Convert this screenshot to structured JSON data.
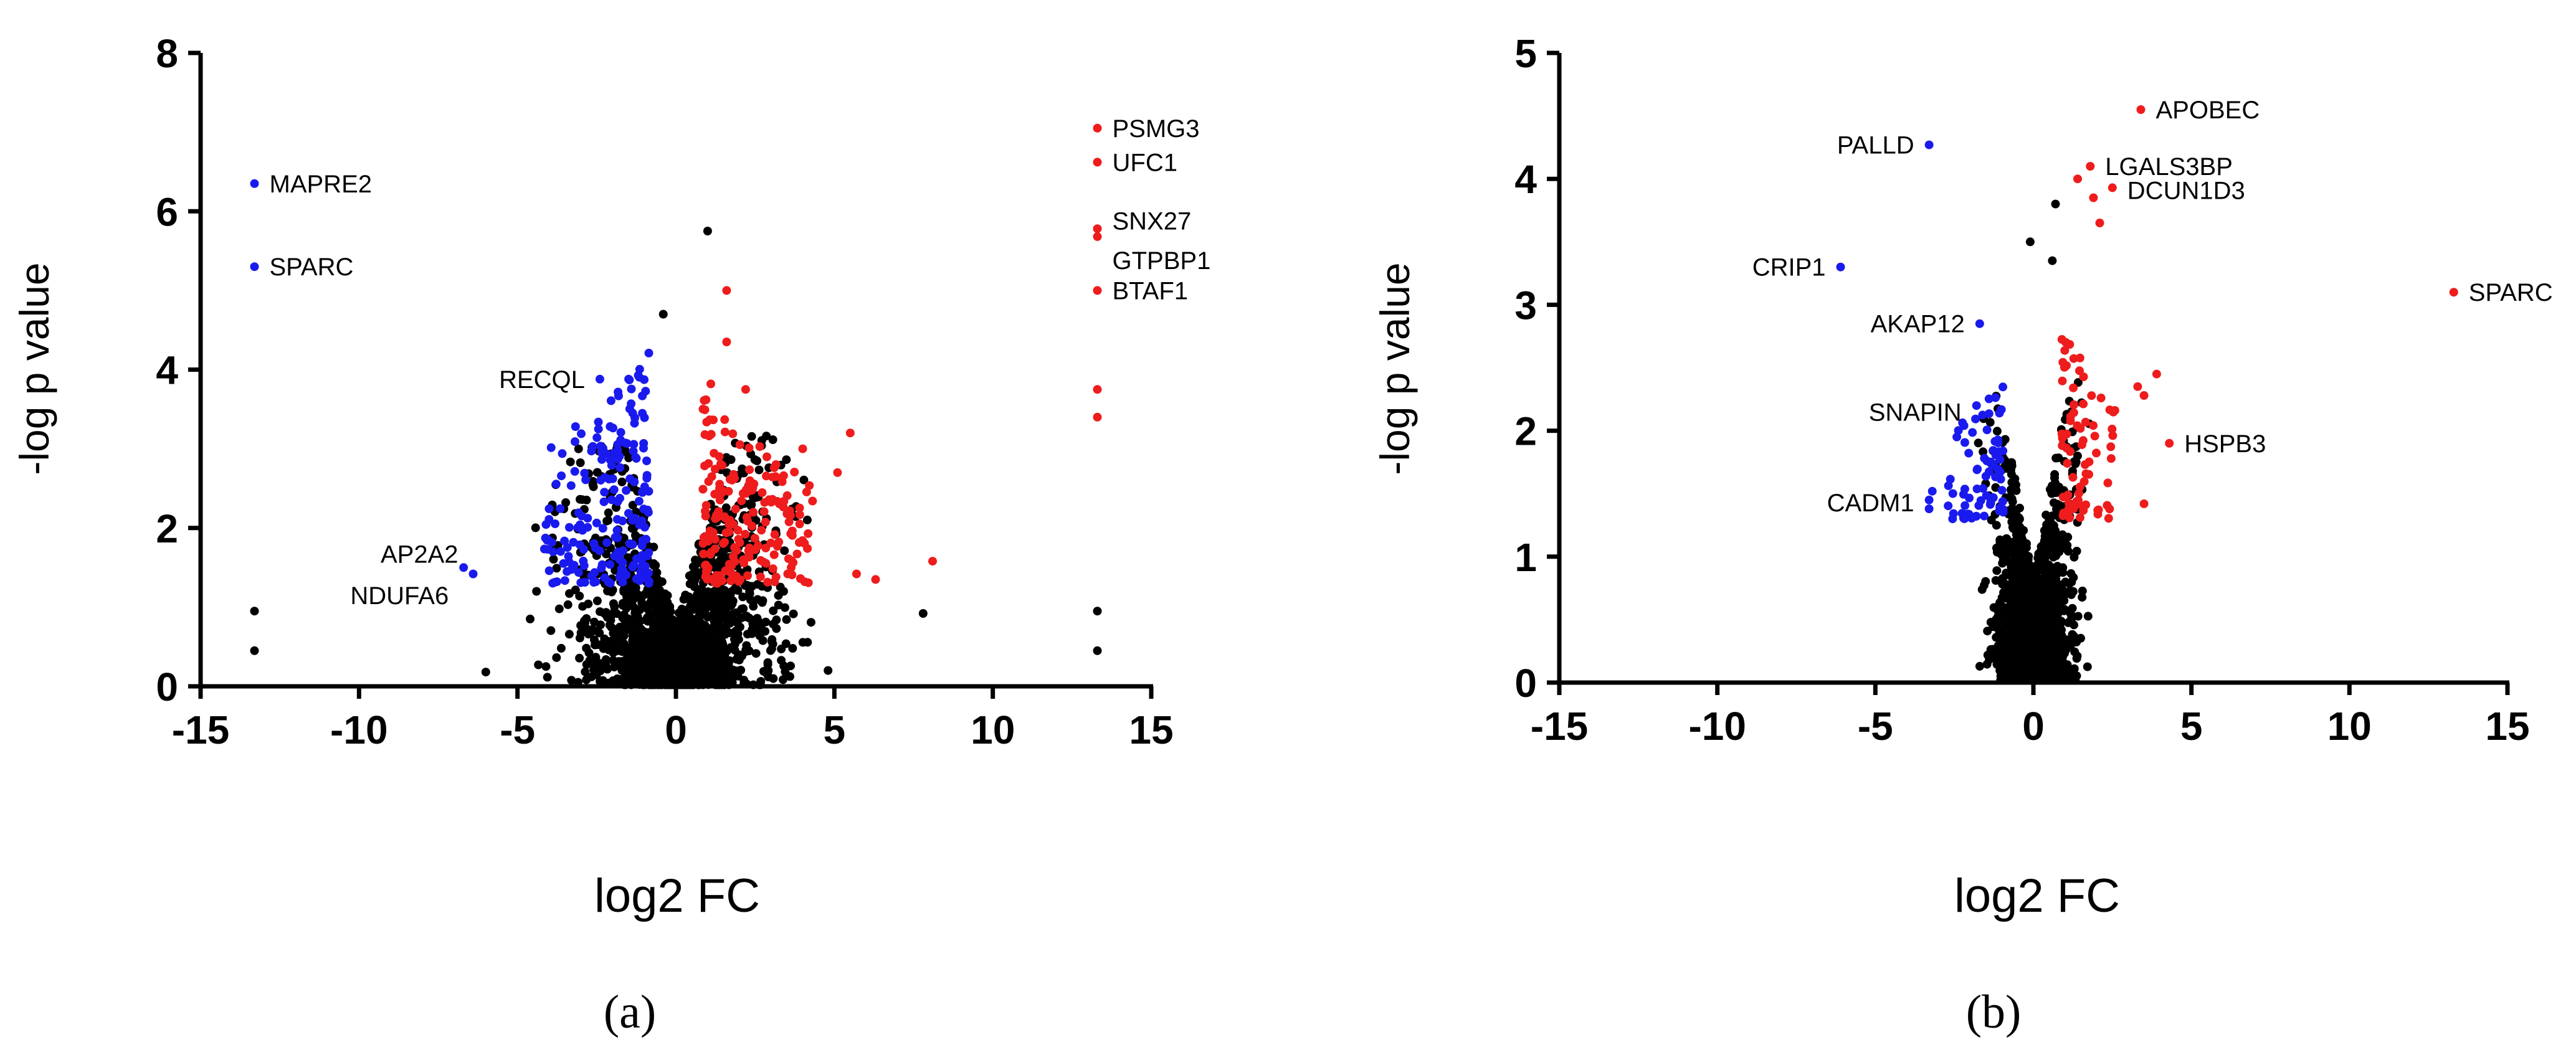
{
  "colors": {
    "up": "#ee1c1c",
    "down": "#1a1aee",
    "ns": "#000000",
    "axis": "#000000"
  },
  "chart_data": [
    {
      "type": "scatter",
      "panel_label": "(a)",
      "xlabel": "log2 FC",
      "ylabel": "-log p value",
      "xlim": [
        -15,
        15
      ],
      "ylim": [
        0,
        8
      ],
      "xticks": [
        -15,
        -10,
        -5,
        0,
        5,
        10,
        15
      ],
      "yticks": [
        0,
        2,
        4,
        6,
        8
      ],
      "xtick_labels": [
        "-15",
        "-10",
        "-5",
        "0",
        "5",
        "10",
        "15"
      ],
      "ytick_labels": [
        "0",
        "2",
        "4",
        "6",
        "8"
      ],
      "annotations": [
        {
          "label": "MAPRE2",
          "x": -13.3,
          "y": 6.35,
          "group": "down",
          "side": "right"
        },
        {
          "label": "SPARC",
          "x": -13.3,
          "y": 5.3,
          "group": "down",
          "side": "right"
        },
        {
          "label": "RECQL",
          "x": -2.4,
          "y": 3.88,
          "group": "down",
          "side": "left"
        },
        {
          "label": "NDUFA6",
          "x": -6.7,
          "y": 1.5,
          "group": "down",
          "side": "left",
          "dy": -0.35
        },
        {
          "label": "AP2A2",
          "x": -6.4,
          "y": 1.42,
          "group": "down",
          "side": "left",
          "dy": 0.25
        },
        {
          "label": "PSMG3",
          "x": 13.3,
          "y": 7.05,
          "group": "up",
          "side": "right"
        },
        {
          "label": "UFC1",
          "x": 13.3,
          "y": 6.62,
          "group": "up",
          "side": "right"
        },
        {
          "label": "SNX27",
          "x": 13.3,
          "y": 5.78,
          "group": "up",
          "side": "right",
          "dy": 0.1
        },
        {
          "label": "GTPBP1",
          "x": 13.3,
          "y": 5.68,
          "group": "up",
          "side": "right",
          "dy": -0.3
        },
        {
          "label": "BTAF1",
          "x": 13.3,
          "y": 5.0,
          "group": "up",
          "side": "right"
        }
      ],
      "extra_points": [
        {
          "x": 13.3,
          "y": 3.75,
          "group": "up"
        },
        {
          "x": 13.3,
          "y": 3.4,
          "group": "up"
        },
        {
          "x": 5.5,
          "y": 3.2,
          "group": "up"
        },
        {
          "x": 4.0,
          "y": 3.0,
          "group": "up"
        },
        {
          "x": 5.1,
          "y": 2.7,
          "group": "up"
        },
        {
          "x": 8.1,
          "y": 1.58,
          "group": "up"
        },
        {
          "x": 6.3,
          "y": 1.35,
          "group": "up"
        },
        {
          "x": 5.7,
          "y": 1.42,
          "group": "up"
        },
        {
          "x": 1.6,
          "y": 5.0,
          "group": "up"
        },
        {
          "x": 1.6,
          "y": 4.35,
          "group": "up"
        },
        {
          "x": 1.1,
          "y": 3.82,
          "group": "up"
        },
        {
          "x": 2.2,
          "y": 3.75,
          "group": "up"
        },
        {
          "x": 1.0,
          "y": 5.75,
          "group": "ns"
        },
        {
          "x": -0.4,
          "y": 4.7,
          "group": "ns"
        },
        {
          "x": -13.3,
          "y": 0.95,
          "group": "ns"
        },
        {
          "x": -13.3,
          "y": 0.45,
          "group": "ns"
        },
        {
          "x": 13.3,
          "y": 0.95,
          "group": "ns"
        },
        {
          "x": 13.3,
          "y": 0.45,
          "group": "ns"
        },
        {
          "x": 7.8,
          "y": 0.92,
          "group": "ns"
        },
        {
          "x": -6.0,
          "y": 0.18,
          "group": "ns"
        },
        {
          "x": -4.6,
          "y": 0.85,
          "group": "ns"
        },
        {
          "x": -4.4,
          "y": 1.2,
          "group": "ns"
        },
        {
          "x": -4.1,
          "y": 0.25,
          "group": "ns"
        },
        {
          "x": 4.8,
          "y": 0.2,
          "group": "ns"
        },
        {
          "x": 3.4,
          "y": 1.2,
          "group": "ns"
        },
        {
          "x": 2.9,
          "y": 0.3,
          "group": "ns"
        }
      ],
      "cloud": {
        "seed": 17,
        "ns_count": 1800,
        "ns_x_range": [
          -4.5,
          4.5
        ],
        "ns_y_max": 3.2,
        "down_count": 200,
        "down_x_range": [
          -4.2,
          -0.85
        ],
        "down_y_range": [
          1.3,
          4.4
        ],
        "up_count": 190,
        "up_x_range": [
          0.85,
          4.4
        ],
        "up_y_range": [
          1.3,
          3.8
        ]
      }
    },
    {
      "type": "scatter",
      "panel_label": "(b)",
      "xlabel": "log2 FC",
      "ylabel": "-log p value",
      "xlim": [
        -15,
        15
      ],
      "ylim": [
        0,
        5
      ],
      "xticks": [
        -15,
        -10,
        -5,
        0,
        5,
        10,
        15
      ],
      "yticks": [
        0,
        1,
        2,
        3,
        4,
        5
      ],
      "xtick_labels": [
        "-15",
        "-10",
        "-5",
        "0",
        "5",
        "10",
        "15"
      ],
      "ytick_labels": [
        "0",
        "1",
        "2",
        "3",
        "4",
        "5"
      ],
      "annotations": [
        {
          "label": "APOBEC",
          "x": 3.4,
          "y": 4.55,
          "group": "up",
          "side": "right"
        },
        {
          "label": "PALLD",
          "x": -3.3,
          "y": 4.27,
          "group": "down",
          "side": "left"
        },
        {
          "label": "LGALS3BP",
          "x": 1.8,
          "y": 4.1,
          "group": "up",
          "side": "right"
        },
        {
          "label": "DCUN1D3",
          "x": 2.5,
          "y": 3.93,
          "group": "up",
          "side": "right",
          "dy": -0.02
        },
        {
          "label": "CRIP1",
          "x": -6.1,
          "y": 3.3,
          "group": "down",
          "side": "left"
        },
        {
          "label": "SPARC",
          "x": 13.3,
          "y": 3.1,
          "group": "up",
          "side": "right"
        },
        {
          "label": "AKAP12",
          "x": -1.7,
          "y": 2.85,
          "group": "down",
          "side": "left"
        },
        {
          "label": "SNAPIN",
          "x": -1.8,
          "y": 2.2,
          "group": "down",
          "side": "left",
          "dy": -0.05
        },
        {
          "label": "HSPB3",
          "x": 4.3,
          "y": 1.9,
          "group": "up",
          "side": "right"
        },
        {
          "label": "CADM1",
          "x": -3.3,
          "y": 1.45,
          "group": "down",
          "side": "left",
          "dy": -0.02
        }
      ],
      "extra_points": [
        {
          "x": -3.3,
          "y": 1.38,
          "group": "down"
        },
        {
          "x": -3.2,
          "y": 1.52,
          "group": "down"
        },
        {
          "x": 2.1,
          "y": 3.65,
          "group": "up"
        },
        {
          "x": 1.9,
          "y": 3.85,
          "group": "up"
        },
        {
          "x": 3.3,
          "y": 2.35,
          "group": "up"
        },
        {
          "x": 3.5,
          "y": 2.28,
          "group": "up"
        },
        {
          "x": 3.9,
          "y": 2.45,
          "group": "up"
        },
        {
          "x": 3.5,
          "y": 1.42,
          "group": "up"
        },
        {
          "x": 1.4,
          "y": 4.0,
          "group": "up"
        },
        {
          "x": 0.7,
          "y": 3.8,
          "group": "ns"
        },
        {
          "x": -0.1,
          "y": 3.5,
          "group": "ns"
        },
        {
          "x": 0.6,
          "y": 3.35,
          "group": "ns"
        }
      ],
      "cloud": {
        "seed": 29,
        "ns_count": 1700,
        "ns_x_range": [
          -1.8,
          1.8
        ],
        "ns_y_max": 3.2,
        "down_count": 70,
        "down_x_range": [
          -2.8,
          -0.95
        ],
        "down_y_range": [
          1.3,
          2.5
        ],
        "up_count": 75,
        "up_x_range": [
          0.9,
          2.6
        ],
        "up_y_range": [
          1.3,
          3.1
        ]
      }
    }
  ]
}
